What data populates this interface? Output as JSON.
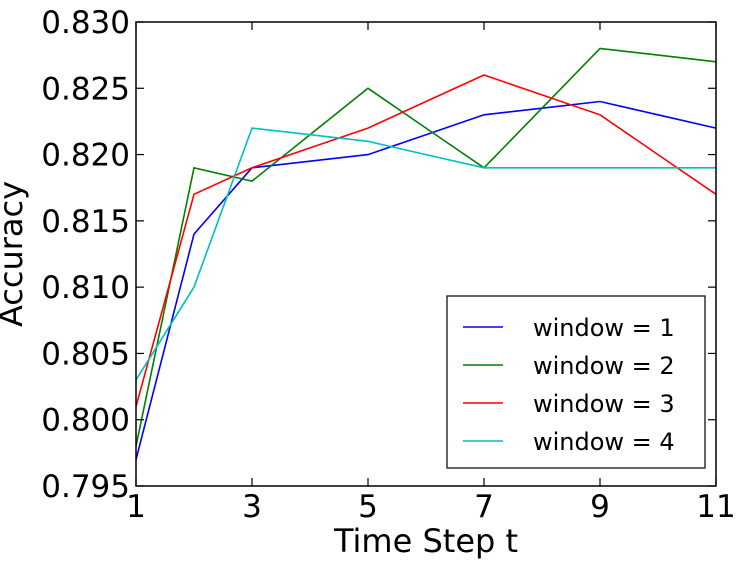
{
  "chart_data": {
    "type": "line",
    "title": "",
    "xlabel": "Time Step t",
    "ylabel": "Accuracy",
    "xlim": [
      1,
      11
    ],
    "ylim": [
      0.795,
      0.83
    ],
    "x": [
      1,
      2,
      3,
      4,
      5,
      6,
      7,
      8,
      9,
      10,
      11
    ],
    "xticks": [
      1,
      3,
      5,
      7,
      9,
      11
    ],
    "xtick_labels": [
      "1",
      "3",
      "5",
      "7",
      "9",
      "11"
    ],
    "yticks": [
      0.795,
      0.8,
      0.805,
      0.81,
      0.815,
      0.82,
      0.825,
      0.83
    ],
    "ytick_labels": [
      "0.795",
      "0.800",
      "0.805",
      "0.810",
      "0.815",
      "0.820",
      "0.825",
      "0.830"
    ],
    "grid": false,
    "legend_position": "lower-right",
    "series": [
      {
        "name": "window = 1",
        "color": "#0000ff",
        "values": [
          0.797,
          0.814,
          0.819,
          0.8195,
          0.82,
          0.8215,
          0.823,
          0.8235,
          0.824,
          0.823,
          0.822
        ]
      },
      {
        "name": "window = 2",
        "color": "#008000",
        "values": [
          0.798,
          0.819,
          0.818,
          0.8215,
          0.825,
          0.822,
          0.819,
          0.8235,
          0.828,
          0.8275,
          0.827
        ]
      },
      {
        "name": "window = 3",
        "color": "#ff0000",
        "values": [
          0.801,
          0.817,
          0.819,
          0.8205,
          0.822,
          0.824,
          0.826,
          0.8245,
          0.823,
          0.82,
          0.817
        ]
      },
      {
        "name": "window = 4",
        "color": "#00bfbf",
        "values": [
          0.803,
          0.81,
          0.822,
          0.8215,
          0.821,
          0.82,
          0.819,
          0.819,
          0.819,
          0.819,
          0.819
        ]
      }
    ]
  }
}
